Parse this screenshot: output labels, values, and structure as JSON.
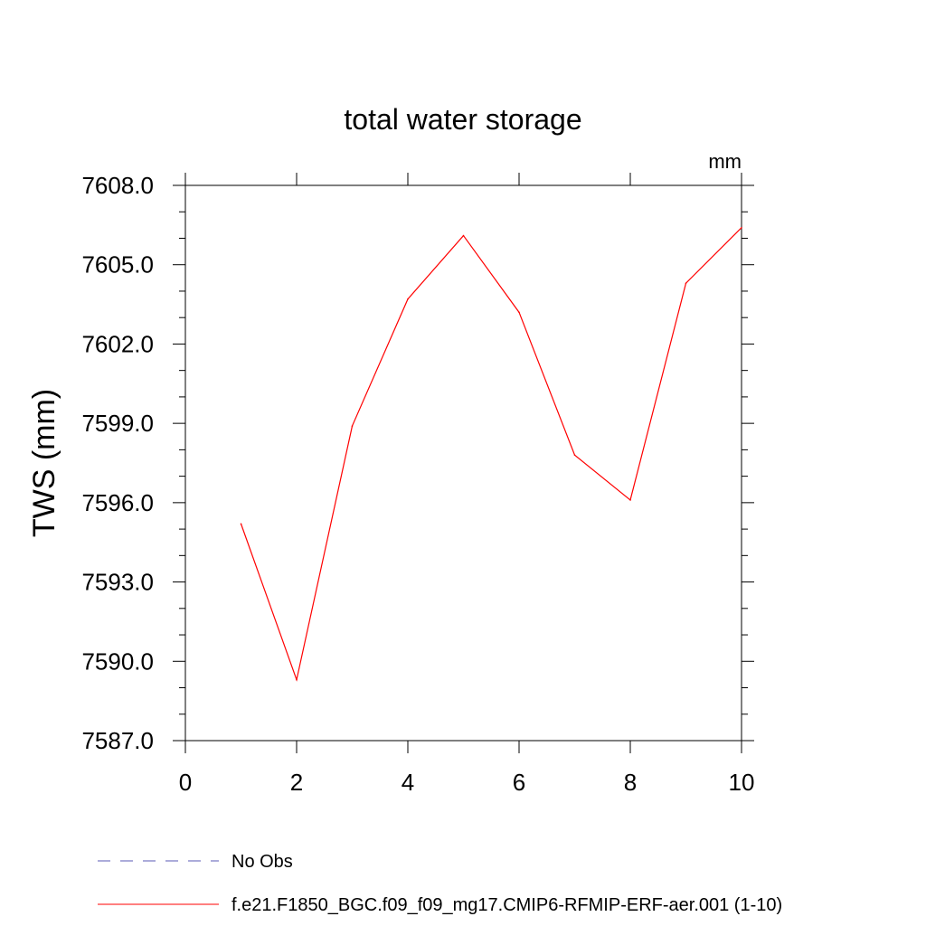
{
  "chart_data": {
    "type": "line",
    "title": "total water storage",
    "units_label": "mm",
    "xlabel": "",
    "ylabel": "TWS  (mm)",
    "xlim": [
      0,
      10
    ],
    "ylim": [
      7587.0,
      7608.0
    ],
    "xticks": [
      0,
      2,
      4,
      6,
      8,
      10
    ],
    "xtick_labels": [
      "0",
      "2",
      "4",
      "6",
      "8",
      "10"
    ],
    "yticks": [
      7587.0,
      7590.0,
      7593.0,
      7596.0,
      7599.0,
      7602.0,
      7605.0,
      7608.0
    ],
    "ytick_labels": [
      "7587.0",
      "7590.0",
      "7593.0",
      "7596.0",
      "7599.0",
      "7602.0",
      "7605.0",
      "7608.0"
    ],
    "grid": false,
    "series": [
      {
        "name": "f.e21.F1850_BGC.f09_f09_mg17.CMIP6-RFMIP-ERF-aer.001 (1-10)",
        "color": "#ff0000",
        "x": [
          1,
          2,
          3,
          4,
          5,
          6,
          7,
          8,
          9,
          10
        ],
        "y": [
          7595.2,
          7589.3,
          7598.9,
          7603.7,
          7606.1,
          7603.2,
          7597.8,
          7596.1,
          7604.3,
          7606.4
        ]
      }
    ],
    "legend": [
      {
        "label": "No Obs",
        "color": "#5a5ab4",
        "style": "dashed"
      },
      {
        "label": "f.e21.F1850_BGC.f09_f09_mg17.CMIP6-RFMIP-ERF-aer.001 (1-10)",
        "color": "#ff0000",
        "style": "solid"
      }
    ],
    "legend_position": "bottom-left"
  }
}
